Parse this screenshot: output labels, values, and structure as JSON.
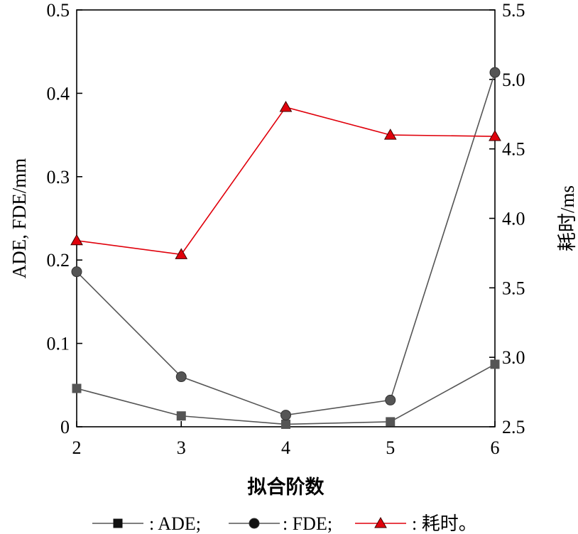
{
  "chart_data": {
    "type": "line",
    "x": [
      2,
      3,
      4,
      5,
      6
    ],
    "xlabel": "拟合阶数",
    "ylabel_left": "ADE, FDE/mm",
    "ylabel_right": "耗时/ms",
    "xlim": [
      2,
      6
    ],
    "ylim_left": [
      0,
      0.5
    ],
    "ylim_right": [
      2.5,
      5.5
    ],
    "x_ticks": [
      "2",
      "3",
      "4",
      "5",
      "6"
    ],
    "y_left_ticks": [
      "0",
      "0.1",
      "0.2",
      "0.3",
      "0.4",
      "0.5"
    ],
    "y_right_ticks": [
      "2.5",
      "3.0",
      "3.5",
      "4.0",
      "4.5",
      "5.0",
      "5.5"
    ],
    "grid": false,
    "legend_position": "bottom",
    "series": [
      {
        "name": ": ADE;",
        "axis": "left",
        "marker": "square",
        "color": "#555555",
        "values": [
          0.046,
          0.013,
          0.003,
          0.006,
          0.075
        ]
      },
      {
        "name": ": FDE;",
        "axis": "left",
        "marker": "circle",
        "color": "#555555",
        "values": [
          0.186,
          0.06,
          0.014,
          0.032,
          0.425
        ]
      },
      {
        "name": ": 耗时。",
        "axis": "right",
        "marker": "triangle",
        "color": "#e0000b",
        "values": [
          3.84,
          3.74,
          4.8,
          4.6,
          4.59
        ]
      }
    ]
  }
}
